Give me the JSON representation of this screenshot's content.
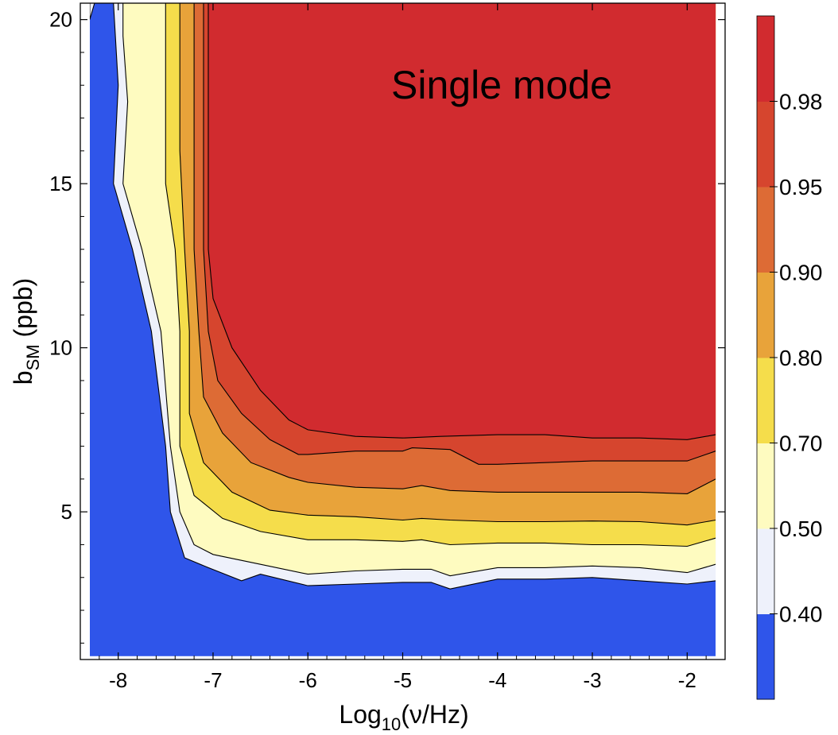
{
  "chart_data": {
    "type": "contour",
    "annotation": "Single mode",
    "x_axis": {
      "label_parts": [
        "Log",
        "10",
        "(ν/Hz)"
      ],
      "range": [
        -8.4,
        -1.6
      ],
      "ticks": [
        -8,
        -7,
        -6,
        -5,
        -4,
        -3,
        -2
      ],
      "tick_labels": [
        "-8",
        "-7",
        "-6",
        "-5",
        "-4",
        "-3",
        "-2"
      ]
    },
    "y_axis": {
      "label_parts": [
        "b",
        "SM",
        " (ppb)"
      ],
      "range": [
        0.5,
        20.5
      ],
      "ticks": [
        5,
        10,
        15,
        20
      ],
      "tick_labels": [
        "5",
        "10",
        "15",
        "20"
      ]
    },
    "data_extent": {
      "x": [
        -8.3,
        -1.7
      ],
      "y": [
        0.6,
        20.5
      ]
    },
    "colorbar": {
      "levels": [
        0.4,
        0.5,
        0.7,
        0.8,
        0.9,
        0.95,
        0.98
      ],
      "labels": [
        "0.40",
        "0.50",
        "0.70",
        "0.80",
        "0.90",
        "0.95",
        "0.98"
      ],
      "band_colors": [
        "#2f55ea",
        "#eef1fb",
        "#fefbc0",
        "#f5dd4b",
        "#e8a33a",
        "#dd6b35",
        "#d6452e",
        "#d12b2f"
      ]
    },
    "contours": [
      {
        "level": 0.4,
        "points": [
          [
            -8.3,
            20.5
          ],
          [
            -8.3,
            20.0
          ],
          [
            -8.25,
            20.5
          ],
          [
            -8.05,
            20.5
          ],
          [
            -8.0,
            18.0
          ],
          [
            -8.05,
            15.0
          ],
          [
            -7.85,
            13.0
          ],
          [
            -7.65,
            10.5
          ],
          [
            -7.5,
            7.0
          ],
          [
            -7.45,
            5.0
          ],
          [
            -7.3,
            3.6
          ],
          [
            -7.05,
            3.3
          ],
          [
            -6.7,
            2.9
          ],
          [
            -6.5,
            3.1
          ],
          [
            -6.0,
            2.75
          ],
          [
            -5.5,
            2.8
          ],
          [
            -5.0,
            2.85
          ],
          [
            -4.7,
            2.85
          ],
          [
            -4.5,
            2.65
          ],
          [
            -4.0,
            2.95
          ],
          [
            -3.5,
            2.95
          ],
          [
            -3.0,
            3.0
          ],
          [
            -2.5,
            2.9
          ],
          [
            -2.0,
            2.8
          ],
          [
            -1.7,
            2.9
          ]
        ]
      },
      {
        "level": 0.5,
        "points": [
          [
            -7.95,
            20.5
          ],
          [
            -7.95,
            19.5
          ],
          [
            -7.9,
            17.5
          ],
          [
            -7.95,
            15.0
          ],
          [
            -7.75,
            13.0
          ],
          [
            -7.55,
            10.5
          ],
          [
            -7.45,
            7.0
          ],
          [
            -7.35,
            5.0
          ],
          [
            -7.2,
            4.0
          ],
          [
            -7.0,
            3.7
          ],
          [
            -6.5,
            3.4
          ],
          [
            -6.0,
            3.1
          ],
          [
            -5.5,
            3.2
          ],
          [
            -5.0,
            3.25
          ],
          [
            -4.7,
            3.25
          ],
          [
            -4.5,
            3.05
          ],
          [
            -4.0,
            3.3
          ],
          [
            -3.5,
            3.3
          ],
          [
            -3.0,
            3.35
          ],
          [
            -2.5,
            3.3
          ],
          [
            -2.0,
            3.15
          ],
          [
            -1.7,
            3.4
          ]
        ]
      },
      {
        "level": 0.7,
        "points": [
          [
            -7.5,
            20.5
          ],
          [
            -7.5,
            17.0
          ],
          [
            -7.5,
            15.0
          ],
          [
            -7.4,
            13.0
          ],
          [
            -7.35,
            10.5
          ],
          [
            -7.35,
            7.0
          ],
          [
            -7.2,
            5.5
          ],
          [
            -6.9,
            4.8
          ],
          [
            -6.5,
            4.4
          ],
          [
            -6.0,
            4.15
          ],
          [
            -5.5,
            4.15
          ],
          [
            -5.0,
            4.1
          ],
          [
            -4.8,
            4.15
          ],
          [
            -4.5,
            4.0
          ],
          [
            -4.0,
            4.05
          ],
          [
            -3.5,
            4.05
          ],
          [
            -3.0,
            4.0
          ],
          [
            -2.5,
            4.0
          ],
          [
            -2.0,
            3.95
          ],
          [
            -1.7,
            4.2
          ]
        ]
      },
      {
        "level": 0.8,
        "points": [
          [
            -7.35,
            20.5
          ],
          [
            -7.35,
            16.0
          ],
          [
            -7.3,
            13.0
          ],
          [
            -7.25,
            10.5
          ],
          [
            -7.25,
            8.0
          ],
          [
            -7.1,
            6.5
          ],
          [
            -6.8,
            5.6
          ],
          [
            -6.4,
            5.05
          ],
          [
            -6.0,
            4.9
          ],
          [
            -5.5,
            4.85
          ],
          [
            -5.0,
            4.75
          ],
          [
            -4.8,
            4.8
          ],
          [
            -4.5,
            4.75
          ],
          [
            -4.0,
            4.7
          ],
          [
            -3.5,
            4.7
          ],
          [
            -3.0,
            4.72
          ],
          [
            -2.5,
            4.7
          ],
          [
            -2.0,
            4.6
          ],
          [
            -1.7,
            4.75
          ]
        ]
      },
      {
        "level": 0.9,
        "points": [
          [
            -7.2,
            20.5
          ],
          [
            -7.2,
            16.0
          ],
          [
            -7.2,
            13.0
          ],
          [
            -7.15,
            10.5
          ],
          [
            -7.1,
            8.5
          ],
          [
            -6.9,
            7.4
          ],
          [
            -6.6,
            6.5
          ],
          [
            -6.2,
            6.05
          ],
          [
            -6.0,
            5.9
          ],
          [
            -5.5,
            5.75
          ],
          [
            -5.0,
            5.7
          ],
          [
            -4.8,
            5.8
          ],
          [
            -4.5,
            5.65
          ],
          [
            -4.0,
            5.6
          ],
          [
            -3.5,
            5.6
          ],
          [
            -3.0,
            5.6
          ],
          [
            -2.5,
            5.6
          ],
          [
            -2.0,
            5.55
          ],
          [
            -1.7,
            6.0
          ]
        ]
      },
      {
        "level": 0.95,
        "points": [
          [
            -7.1,
            20.5
          ],
          [
            -7.1,
            16.0
          ],
          [
            -7.1,
            13.0
          ],
          [
            -7.05,
            10.5
          ],
          [
            -6.95,
            9.0
          ],
          [
            -6.7,
            8.0
          ],
          [
            -6.4,
            7.2
          ],
          [
            -6.1,
            6.75
          ],
          [
            -6.0,
            6.75
          ],
          [
            -5.5,
            6.85
          ],
          [
            -5.0,
            6.85
          ],
          [
            -4.9,
            6.95
          ],
          [
            -4.5,
            6.9
          ],
          [
            -4.2,
            6.45
          ],
          [
            -4.0,
            6.45
          ],
          [
            -3.5,
            6.5
          ],
          [
            -3.0,
            6.55
          ],
          [
            -2.5,
            6.55
          ],
          [
            -2.0,
            6.55
          ],
          [
            -1.7,
            6.85
          ]
        ]
      },
      {
        "level": 0.98,
        "points": [
          [
            -7.05,
            20.5
          ],
          [
            -7.05,
            16.0
          ],
          [
            -7.05,
            13.0
          ],
          [
            -7.0,
            11.5
          ],
          [
            -6.8,
            10.0
          ],
          [
            -6.5,
            8.7
          ],
          [
            -6.2,
            7.8
          ],
          [
            -6.0,
            7.5
          ],
          [
            -5.5,
            7.3
          ],
          [
            -5.0,
            7.25
          ],
          [
            -4.6,
            7.3
          ],
          [
            -4.0,
            7.35
          ],
          [
            -3.5,
            7.35
          ],
          [
            -3.0,
            7.25
          ],
          [
            -2.5,
            7.25
          ],
          [
            -2.0,
            7.2
          ],
          [
            -1.7,
            7.35
          ]
        ]
      }
    ]
  }
}
